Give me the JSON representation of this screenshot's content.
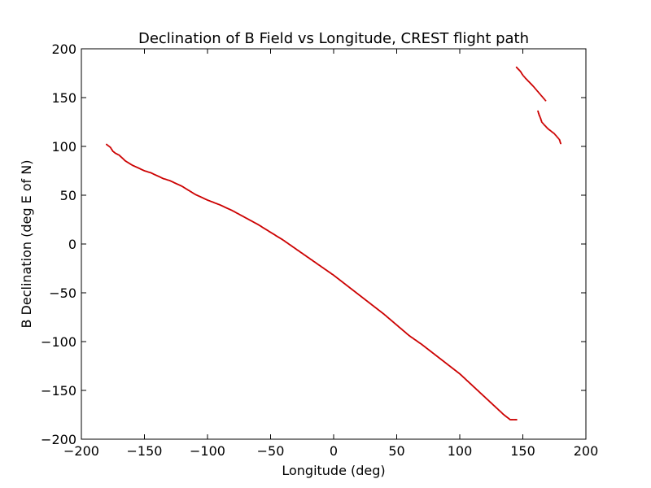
{
  "chart_data": {
    "type": "scatter",
    "title": "Declination of B Field vs Longitude, CREST flight path",
    "xlabel": "Longitude (deg)",
    "ylabel": "B Declination (deg E of N)",
    "xlim": [
      -200,
      200
    ],
    "ylim": [
      -200,
      200
    ],
    "xticks": [
      "−200",
      "−150",
      "−100",
      "−50",
      "0",
      "50",
      "100",
      "150",
      "200"
    ],
    "yticks": [
      "−200",
      "−150",
      "−100",
      "−50",
      "0",
      "50",
      "100",
      "150",
      "200"
    ],
    "grid": false,
    "legend": "none",
    "marker_color": "#cc0000",
    "series": [
      {
        "values_x": [
          -180,
          -177,
          -175,
          -173,
          -170,
          -165,
          -160,
          -155,
          -150,
          -145,
          -140,
          -135,
          -130,
          -125,
          -120,
          -115,
          -110,
          -100,
          -90,
          -80,
          -70,
          -60,
          -50,
          -40,
          -30,
          -20,
          -10,
          0,
          10,
          20,
          30,
          40,
          50,
          60,
          70,
          80,
          90,
          100,
          110,
          120,
          130,
          135,
          140,
          145
        ],
        "values_y": [
          102,
          99,
          95,
          93,
          91,
          85,
          81,
          78,
          75,
          73,
          70,
          67,
          65,
          62,
          59,
          55,
          51,
          45,
          40,
          34,
          27,
          20,
          12,
          4,
          -5,
          -14,
          -23,
          -32,
          -42,
          -52,
          -62,
          -72,
          -83,
          -94,
          -103,
          -113,
          -123,
          -133,
          -145,
          -157,
          -169,
          -175,
          -180,
          -180
        ]
      },
      {
        "values_x": [
          145,
          148,
          150,
          152,
          155,
          158,
          160,
          162,
          164,
          166,
          168
        ],
        "values_y": [
          181,
          177,
          173,
          170,
          166,
          162,
          159,
          156,
          153,
          150,
          147
        ]
      },
      {
        "values_x": [
          162,
          163,
          164,
          165,
          167,
          170,
          172,
          175,
          177,
          179,
          180
        ],
        "values_y": [
          136,
          132,
          129,
          125,
          122,
          118,
          116,
          113,
          110,
          107,
          103
        ]
      }
    ]
  }
}
